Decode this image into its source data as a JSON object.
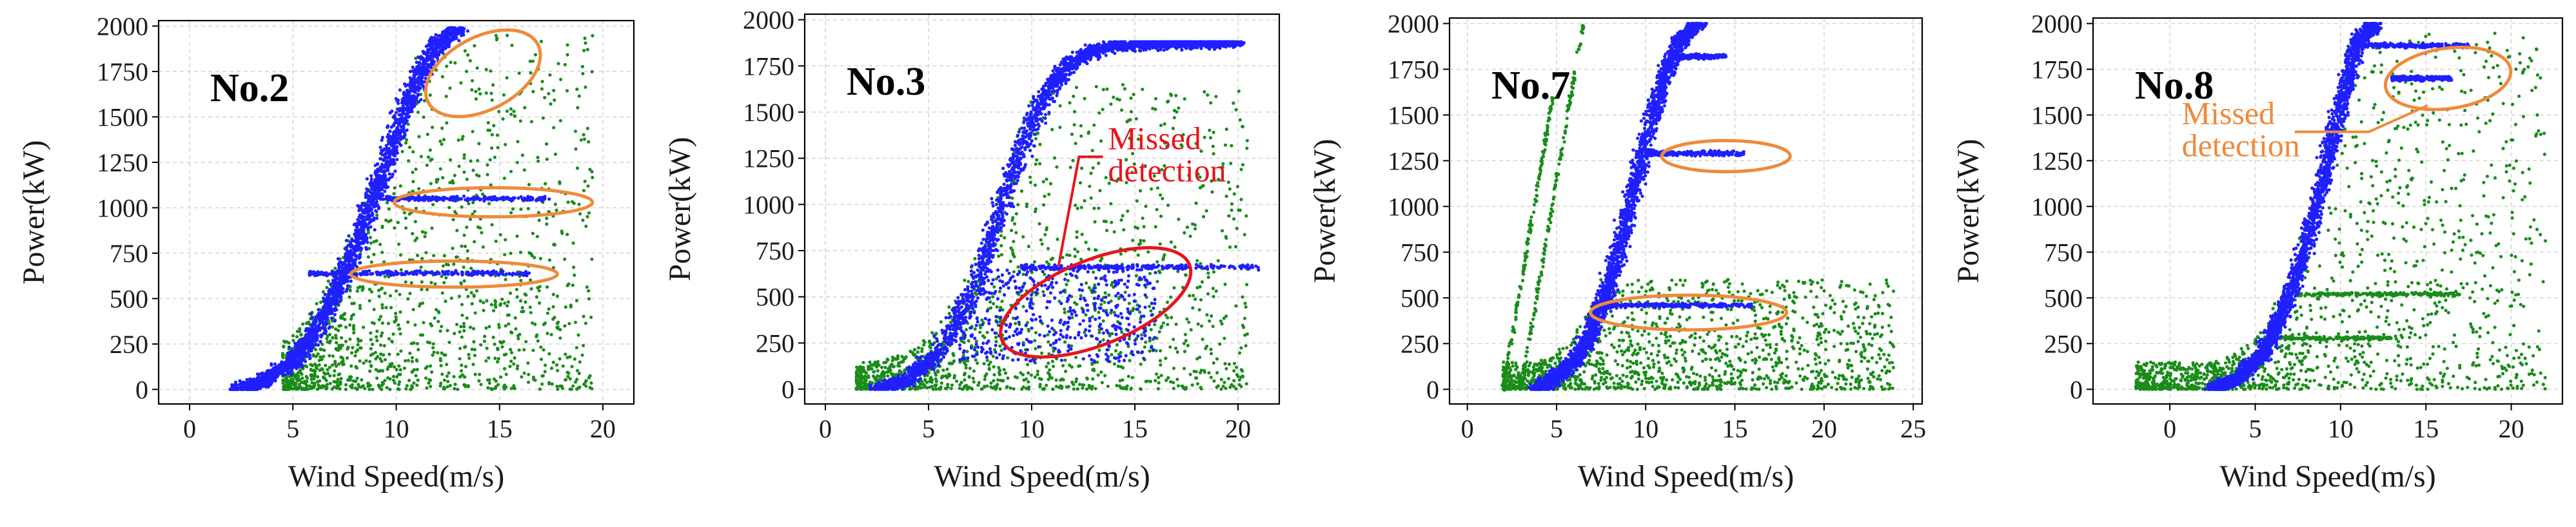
{
  "colors": {
    "normal": "#1f1fff",
    "abnormal": "#1a8c1a",
    "highlight_orange": "#ef8a3a",
    "highlight_red": "#e8141c"
  },
  "chart_data": [
    {
      "type": "scatter",
      "panel_label": "No.2",
      "xlabel": "Wind Speed(m/s)",
      "ylabel": "Power(kW)",
      "xlim": [
        -1.5,
        21.5
      ],
      "ylim": [
        -80,
        2030
      ],
      "xticks": [
        0,
        5,
        10,
        15,
        20
      ],
      "yticks": [
        0,
        250,
        500,
        750,
        1000,
        1250,
        1500,
        1750,
        2000
      ],
      "grid": true,
      "series": [
        {
          "role": "normal",
          "color": "#1f1fff",
          "curve": {
            "x": [
              2.3,
              3.5,
              5,
              6,
              7,
              8,
              9,
              10,
              11,
              12,
              13
            ],
            "y": [
              0,
              40,
              150,
              300,
              520,
              780,
              1080,
              1400,
              1700,
              1900,
              1990
            ]
          },
          "plateaus": [
            {
              "y": 640,
              "x": [
                5.8,
                16.5
              ]
            },
            {
              "y": 1050,
              "x": [
                9.5,
                17.5
              ]
            }
          ]
        },
        {
          "role": "abnormal",
          "color": "#1a8c1a",
          "region": {
            "x": [
              4.5,
              19.5
            ],
            "y": [
              0,
              1950
            ]
          }
        }
      ],
      "annotations": [
        {
          "shape": "ellipse",
          "color": "#ef8a3a",
          "cx": 14.2,
          "cy": 1740,
          "rx": 3.0,
          "ry": 200,
          "angle": -28
        },
        {
          "shape": "ellipse",
          "color": "#ef8a3a",
          "cx": 14.7,
          "cy": 1030,
          "rx": 4.8,
          "ry": 80,
          "angle": 0
        },
        {
          "shape": "ellipse",
          "color": "#ef8a3a",
          "cx": 12.8,
          "cy": 635,
          "rx": 5.0,
          "ry": 72,
          "angle": 0
        }
      ]
    },
    {
      "type": "scatter",
      "panel_label": "No.3",
      "xlabel": "Wind Speed(m/s)",
      "ylabel": "Power(kW)",
      "xlim": [
        -1.0,
        22.0
      ],
      "ylim": [
        -80,
        2030
      ],
      "xticks": [
        0,
        5,
        10,
        15,
        20
      ],
      "yticks": [
        0,
        250,
        500,
        750,
        1000,
        1250,
        1500,
        1750,
        2000
      ],
      "grid": true,
      "series": [
        {
          "role": "normal",
          "color": "#1f1fff",
          "curve": {
            "x": [
              2.5,
              4,
              5.5,
              7,
              8,
              9,
              10,
              11,
              12,
              13,
              14,
              16,
              20
            ],
            "y": [
              0,
              50,
              200,
              500,
              800,
              1150,
              1450,
              1650,
              1780,
              1830,
              1860,
              1870,
              1880
            ]
          },
          "plateaus": [
            {
              "y": 660,
              "x": [
                9.5,
                21
              ]
            }
          ],
          "extra_region": {
            "x": [
              6.5,
              16
            ],
            "y": [
              150,
              660
            ]
          }
        },
        {
          "role": "abnormal",
          "color": "#1a8c1a",
          "region": {
            "x": [
              1.5,
              20.5
            ],
            "y": [
              0,
              1650
            ]
          }
        }
      ],
      "annotations": [
        {
          "shape": "ellipse",
          "color": "#e8141c",
          "cx": 13.1,
          "cy": 470,
          "rx": 4.9,
          "ry": 230,
          "angle": -22
        },
        {
          "shape": "text",
          "color": "#e8141c",
          "lines": [
            "Missed",
            "detection"
          ],
          "x": 13.7,
          "y": 1300
        }
      ]
    },
    {
      "type": "scatter",
      "panel_label": "No.7",
      "xlabel": "Wind Speed(m/s)",
      "ylabel": "Power(kW)",
      "xlim": [
        -1.0,
        25.5
      ],
      "ylim": [
        -80,
        2030
      ],
      "xticks": [
        0,
        5,
        10,
        15,
        20,
        25
      ],
      "yticks": [
        0,
        250,
        500,
        750,
        1000,
        1250,
        1500,
        1750,
        2000
      ],
      "grid": true,
      "series": [
        {
          "role": "normal",
          "color": "#1f1fff",
          "curve": {
            "x": [
              4,
              6,
              7,
              8,
              9,
              10,
              11,
              12,
              13
            ],
            "y": [
              0,
              150,
              320,
              600,
              950,
              1350,
              1700,
              1920,
              2000
            ]
          },
          "plateaus": [
            {
              "y": 460,
              "x": [
                7.5,
                16
              ]
            },
            {
              "y": 1290,
              "x": [
                10,
                15.5
              ]
            },
            {
              "y": 1820,
              "x": [
                11.5,
                14.5
              ]
            }
          ]
        },
        {
          "role": "abnormal",
          "color": "#1a8c1a",
          "region": {
            "x": [
              2.0,
              24.0
            ],
            "y": [
              0,
              600
            ]
          },
          "lines": [
            {
              "x": [
                2.0,
                4.8
              ],
              "y": [
                0,
                1600
              ]
            },
            {
              "x": [
                3.0,
                6.5
              ],
              "y": [
                0,
                2000
              ]
            }
          ]
        }
      ],
      "annotations": [
        {
          "shape": "ellipse",
          "color": "#ef8a3a",
          "cx": 14.5,
          "cy": 1275,
          "rx": 3.6,
          "ry": 85,
          "angle": 0
        },
        {
          "shape": "ellipse",
          "color": "#ef8a3a",
          "cx": 12.4,
          "cy": 420,
          "rx": 5.5,
          "ry": 95,
          "angle": 0
        }
      ]
    },
    {
      "type": "scatter",
      "panel_label": "No.8",
      "xlabel": "Wind Speed(m/s)",
      "ylabel": "Power(kW)",
      "xlim": [
        -4.5,
        23.0
      ],
      "ylim": [
        -80,
        2030
      ],
      "xticks": [
        0,
        5,
        10,
        15,
        20
      ],
      "yticks": [
        0,
        250,
        500,
        750,
        1000,
        1250,
        1500,
        1750,
        2000
      ],
      "grid": true,
      "series": [
        {
          "role": "normal",
          "color": "#1f1fff",
          "curve": {
            "x": [
              2.5,
              4,
              5.5,
              7,
              8,
              9,
              10,
              11,
              12
            ],
            "y": [
              0,
              60,
              200,
              500,
              800,
              1150,
              1550,
              1900,
              2000
            ]
          },
          "plateaus": [
            {
              "y": 1880,
              "x": [
                11,
                17.5
              ]
            },
            {
              "y": 1700,
              "x": [
                13,
                16.5
              ]
            }
          ]
        },
        {
          "role": "abnormal",
          "color": "#1a8c1a",
          "region": {
            "x": [
              -2.0,
              22.0
            ],
            "y": [
              0,
              1950
            ]
          },
          "plateaus": [
            {
              "y": 520,
              "x": [
                7.5,
                17
              ]
            },
            {
              "y": 280,
              "x": [
                5.5,
                13
              ]
            }
          ]
        }
      ],
      "annotations": [
        {
          "shape": "ellipse",
          "color": "#ef8a3a",
          "cx": 16.3,
          "cy": 1700,
          "rx": 3.7,
          "ry": 165,
          "angle": -8
        },
        {
          "shape": "text",
          "color": "#ef8a3a",
          "lines": [
            "Missed",
            "detection"
          ],
          "x": 0.7,
          "y": 1450
        }
      ]
    }
  ]
}
